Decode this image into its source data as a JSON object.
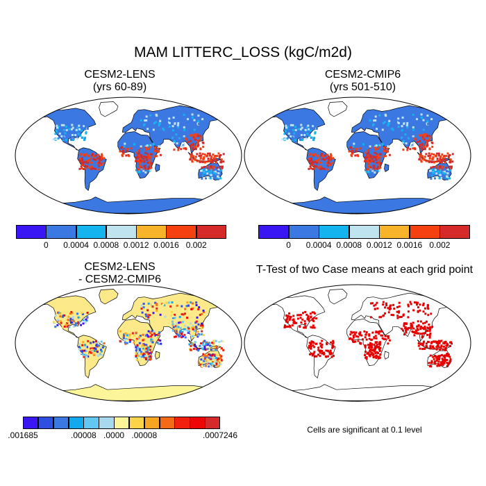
{
  "title": "MAM LITTERC_LOSS (kgC/m2d)",
  "panels": {
    "top_left": {
      "title_line1": "CESM2-LENS",
      "title_line2": "(yrs 60-89)"
    },
    "top_right": {
      "title_line1": "CESM2-CMIP6",
      "title_line2": "(yrs 501-510)"
    },
    "bottom_left": {
      "title_line1": "CESM2-LENS",
      "title_line2": "- CESM2-CMIP6"
    },
    "bottom_right": {
      "title": "T-Test of two Case means at each grid point",
      "note": "Cells are significant at 0.1 level"
    }
  },
  "colorbar_top": {
    "colors": [
      "#3b16f5",
      "#3c78e2",
      "#14b4ee",
      "#bfe3ef",
      "#f7b42b",
      "#f5400f",
      "#d42a2a"
    ],
    "labels": [
      "0",
      "0.0004",
      "0.0008",
      "0.0012",
      "0.0016",
      "0.002"
    ]
  },
  "colorbar_diff": {
    "colors": [
      "#3b16f5",
      "#2f4fe0",
      "#3c78e2",
      "#14a8ee",
      "#62c8f2",
      "#a9d9ef",
      "#fdf59a",
      "#fbd44a",
      "#f7a623",
      "#f56a16",
      "#f2200e",
      "#ee0505",
      "#d42a2a"
    ],
    "labels": [
      ".001685",
      ".00008",
      ".0000",
      ".00008",
      ".0007246"
    ]
  },
  "significance_color": "#e60000"
}
